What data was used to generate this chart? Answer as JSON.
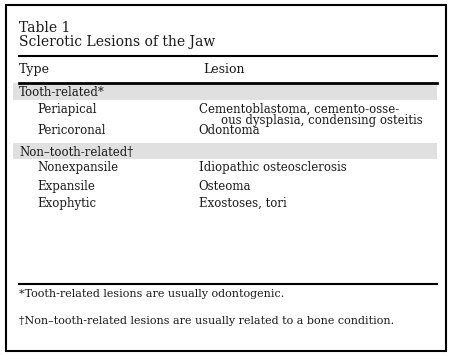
{
  "table_num": "Table 1",
  "table_title": "Sclerotic Lesions of the Jaw",
  "col_headers": [
    "Type",
    "Lesion"
  ],
  "section_rows": [
    {
      "label": "Tooth-related*",
      "lesion": "",
      "shaded": true
    },
    {
      "label": "   Periapical",
      "lesion": "Cementoblastoma, cemento-osse-\nous dysplasia, condensing osteitis",
      "shaded": false
    },
    {
      "label": "   Pericoronal",
      "lesion": "Odontoma",
      "shaded": false
    },
    {
      "label": "Non–tooth-related†",
      "lesion": "",
      "shaded": true
    },
    {
      "label": "   Nonexpansile",
      "lesion": "Idiopathic osteosclerosis",
      "shaded": false
    },
    {
      "label": "   Expansile",
      "lesion": "Osteoma",
      "shaded": false
    },
    {
      "label": "   Exophytic",
      "lesion": "Exostoses, tori",
      "shaded": false
    }
  ],
  "footnotes": [
    "*Tooth-related lesions are usually odontogenic.",
    "†Non–tooth-related lesions are usually related to a bone condition."
  ],
  "bg_color": "#ffffff",
  "shade_color": "#e0e0e0",
  "border_color": "#000000",
  "text_color": "#1a1a1a",
  "font_size": 8.5,
  "header_font_size": 9.0,
  "title_font_size": 10.0
}
